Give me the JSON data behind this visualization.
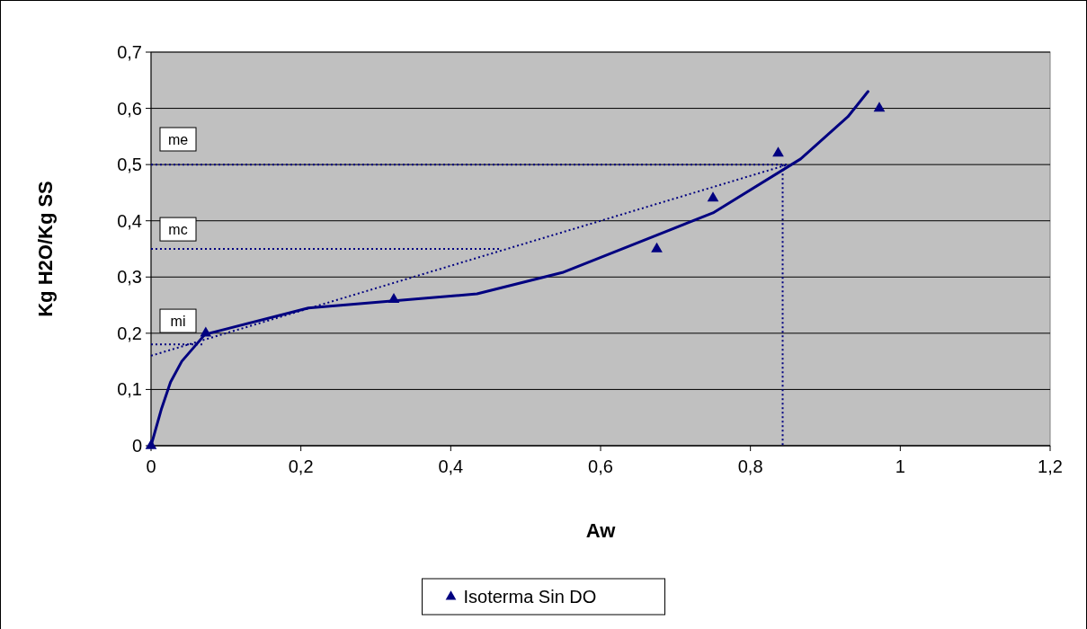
{
  "chart_data": {
    "type": "scatter",
    "xlabel": "Aw",
    "ylabel": "Kg H2O/Kg SS",
    "xlim": [
      0,
      1.2
    ],
    "ylim": [
      0,
      0.7
    ],
    "xticks": [
      0,
      {
        "value": 0.2,
        "label": "0,2"
      },
      {
        "value": 0.4,
        "label": "0,4"
      },
      {
        "value": 0.6,
        "label": "0,6"
      },
      {
        "value": 0.8,
        "label": "0,8"
      },
      1,
      {
        "value": 1.2,
        "label": "1,2"
      }
    ],
    "yticks": [
      0,
      {
        "value": 0.1,
        "label": "0,1"
      },
      {
        "value": 0.2,
        "label": "0,2"
      },
      {
        "value": 0.3,
        "label": "0,3"
      },
      {
        "value": 0.4,
        "label": "0,4"
      },
      {
        "value": 0.5,
        "label": "0,5"
      },
      {
        "value": 0.6,
        "label": "0,6"
      },
      {
        "value": 0.7,
        "label": "0,7"
      }
    ],
    "grid": "y",
    "legend": "bottom",
    "series": [
      {
        "type": "line",
        "color": "#000080",
        "line_style": "solid",
        "marker": "none",
        "x": [
          0,
          0.014,
          0.026,
          0.041,
          0.072,
          0.21,
          0.435,
          0.549,
          0.75,
          0.867,
          0.93,
          0.957
        ],
        "values": [
          0,
          0.066,
          0.113,
          0.15,
          0.198,
          0.245,
          0.27,
          0.308,
          0.414,
          0.51,
          0.585,
          0.63
        ]
      },
      {
        "type": "line",
        "color": "#000080",
        "line_style": "dotted",
        "marker": "none",
        "x": [
          0,
          0.85
        ],
        "values": [
          0.16,
          0.5
        ]
      },
      {
        "type": "line",
        "color": "#000080",
        "line_style": "dotted",
        "marker": "none",
        "x": [
          0,
          0.85
        ],
        "values": [
          0.5,
          0.5
        ]
      },
      {
        "type": "line",
        "color": "#000080",
        "line_style": "dotted",
        "marker": "none",
        "x": [
          0.843,
          0.843
        ],
        "values": [
          0.5,
          0
        ]
      },
      {
        "type": "line",
        "color": "#000080",
        "line_style": "dotted",
        "marker": "none",
        "x": [
          0,
          0.468
        ],
        "values": [
          0.35,
          0.35
        ]
      },
      {
        "type": "line",
        "color": "#000080",
        "line_style": "dotted",
        "marker": "none",
        "x": [
          0,
          0.07
        ],
        "values": [
          0.18,
          0.18
        ]
      },
      {
        "name": "Isoterma Sin DO",
        "color": "#000080",
        "marker": "triangle",
        "x": [
          0,
          0.073,
          0.324,
          0.675,
          0.75,
          0.837,
          0.972
        ],
        "values": [
          0,
          0.2,
          0.26,
          0.35,
          0.44,
          0.52,
          0.6
        ]
      }
    ],
    "annotations": [
      {
        "text": "me",
        "y": 0.545
      },
      {
        "text": "mc",
        "y": 0.385
      },
      {
        "text": "mi",
        "y": 0.222
      }
    ]
  }
}
